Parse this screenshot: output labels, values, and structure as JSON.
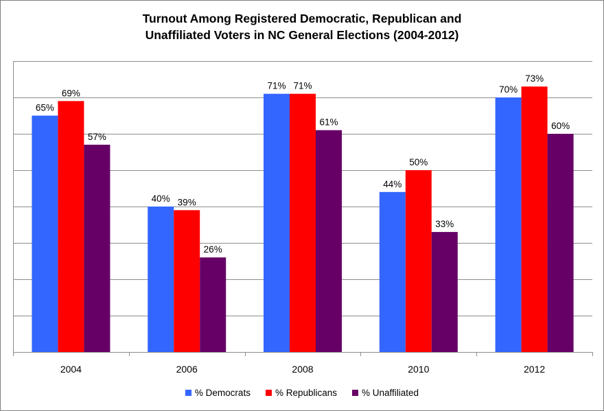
{
  "chart_data": {
    "type": "bar",
    "title_lines": [
      "Turnout Among Registered Democratic, Republican and",
      "Unaffiliated Voters in NC General Elections (2004-2012)"
    ],
    "xlabel": "",
    "ylabel": "",
    "categories": [
      "2004",
      "2006",
      "2008",
      "2010",
      "2012"
    ],
    "series": [
      {
        "name": "% Democrats",
        "color": "#3366ff",
        "values": [
          65,
          40,
          71,
          44,
          70
        ],
        "labels": [
          "65%",
          "40%",
          "71%",
          "44%",
          "70%"
        ]
      },
      {
        "name": "% Republicans",
        "color": "#ff0000",
        "values": [
          69,
          39,
          71,
          50,
          73
        ],
        "labels": [
          "69%",
          "39%",
          "71%",
          "50%",
          "73%"
        ]
      },
      {
        "name": "% Unaffiliated",
        "color": "#660066",
        "values": [
          57,
          26,
          61,
          33,
          60
        ],
        "labels": [
          "57%",
          "26%",
          "61%",
          "33%",
          "60%"
        ]
      }
    ],
    "ylim": [
      0,
      80
    ],
    "y_gridline_step": 10,
    "y_tick_labels_shown": false,
    "grid": true,
    "legend_position": "bottom"
  }
}
